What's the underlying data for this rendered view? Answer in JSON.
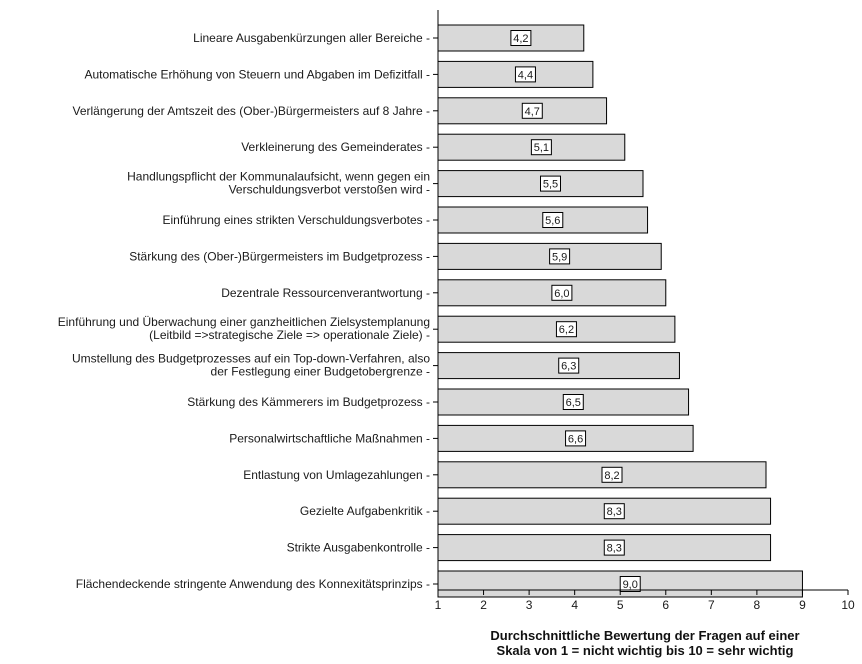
{
  "chart_data": {
    "type": "bar",
    "orientation": "horizontal",
    "categories": [
      [
        "Lineare Ausgabenkürzungen aller Bereiche -"
      ],
      [
        "Automatische Erhöhung von Steuern und Abgaben im Defizitfall -"
      ],
      [
        "Verlängerung der Amtszeit des (Ober-)Bürgermeisters auf 8 Jahre -"
      ],
      [
        "Verkleinerung des Gemeinderates -"
      ],
      [
        "Handlungspflicht der Kommunalaufsicht, wenn gegen ein",
        "Verschuldungsverbot verstoßen wird -"
      ],
      [
        "Einführung eines strikten Verschuldungsverbotes -"
      ],
      [
        "Stärkung des (Ober-)Bürgermeisters im Budgetprozess  -"
      ],
      [
        "Dezentrale Ressourcenverantwortung -"
      ],
      [
        "Einführung und Überwachung einer ganzheitlichen Zielsystemplanung",
        "(Leitbild =>strategische Ziele => operationale Ziele) -"
      ],
      [
        "Umstellung des Budgetprozesses auf ein Top-down-Verfahren, also",
        "der Festlegung einer Budgetobergrenze -"
      ],
      [
        "Stärkung des Kämmerers im Budgetprozess -"
      ],
      [
        "Personalwirtschaftliche Maßnahmen -"
      ],
      [
        "Entlastung von Umlagezahlungen -"
      ],
      [
        "Gezielte Aufgabenkritik -"
      ],
      [
        "Strikte Ausgabenkontrolle -"
      ],
      [
        "Flächendeckende stringente Anwendung des Konnexitätsprinzips -"
      ]
    ],
    "values": [
      4.2,
      4.4,
      4.7,
      5.1,
      5.5,
      5.6,
      5.9,
      6.0,
      6.2,
      6.3,
      6.5,
      6.6,
      8.2,
      8.3,
      8.3,
      9.0
    ],
    "data_labels": [
      "4,2",
      "4,4",
      "4,7",
      "5,1",
      "5,5",
      "5,6",
      "5,9",
      "6,0",
      "6,2",
      "6,3",
      "6,5",
      "6,6",
      "8,2",
      "8,3",
      "8,3",
      "9,0"
    ],
    "xlim": [
      1,
      10
    ],
    "xticks": [
      1,
      2,
      3,
      4,
      5,
      6,
      7,
      8,
      9,
      10
    ],
    "xlabel": [
      "Durchschnittliche Bewertung der Fragen auf einer",
      "Skala von 1 = nicht wichtig bis 10 = sehr wichtig"
    ],
    "bar_color": "#d9d9d9",
    "edge_color": "#000000",
    "grid": false,
    "legend": false
  }
}
